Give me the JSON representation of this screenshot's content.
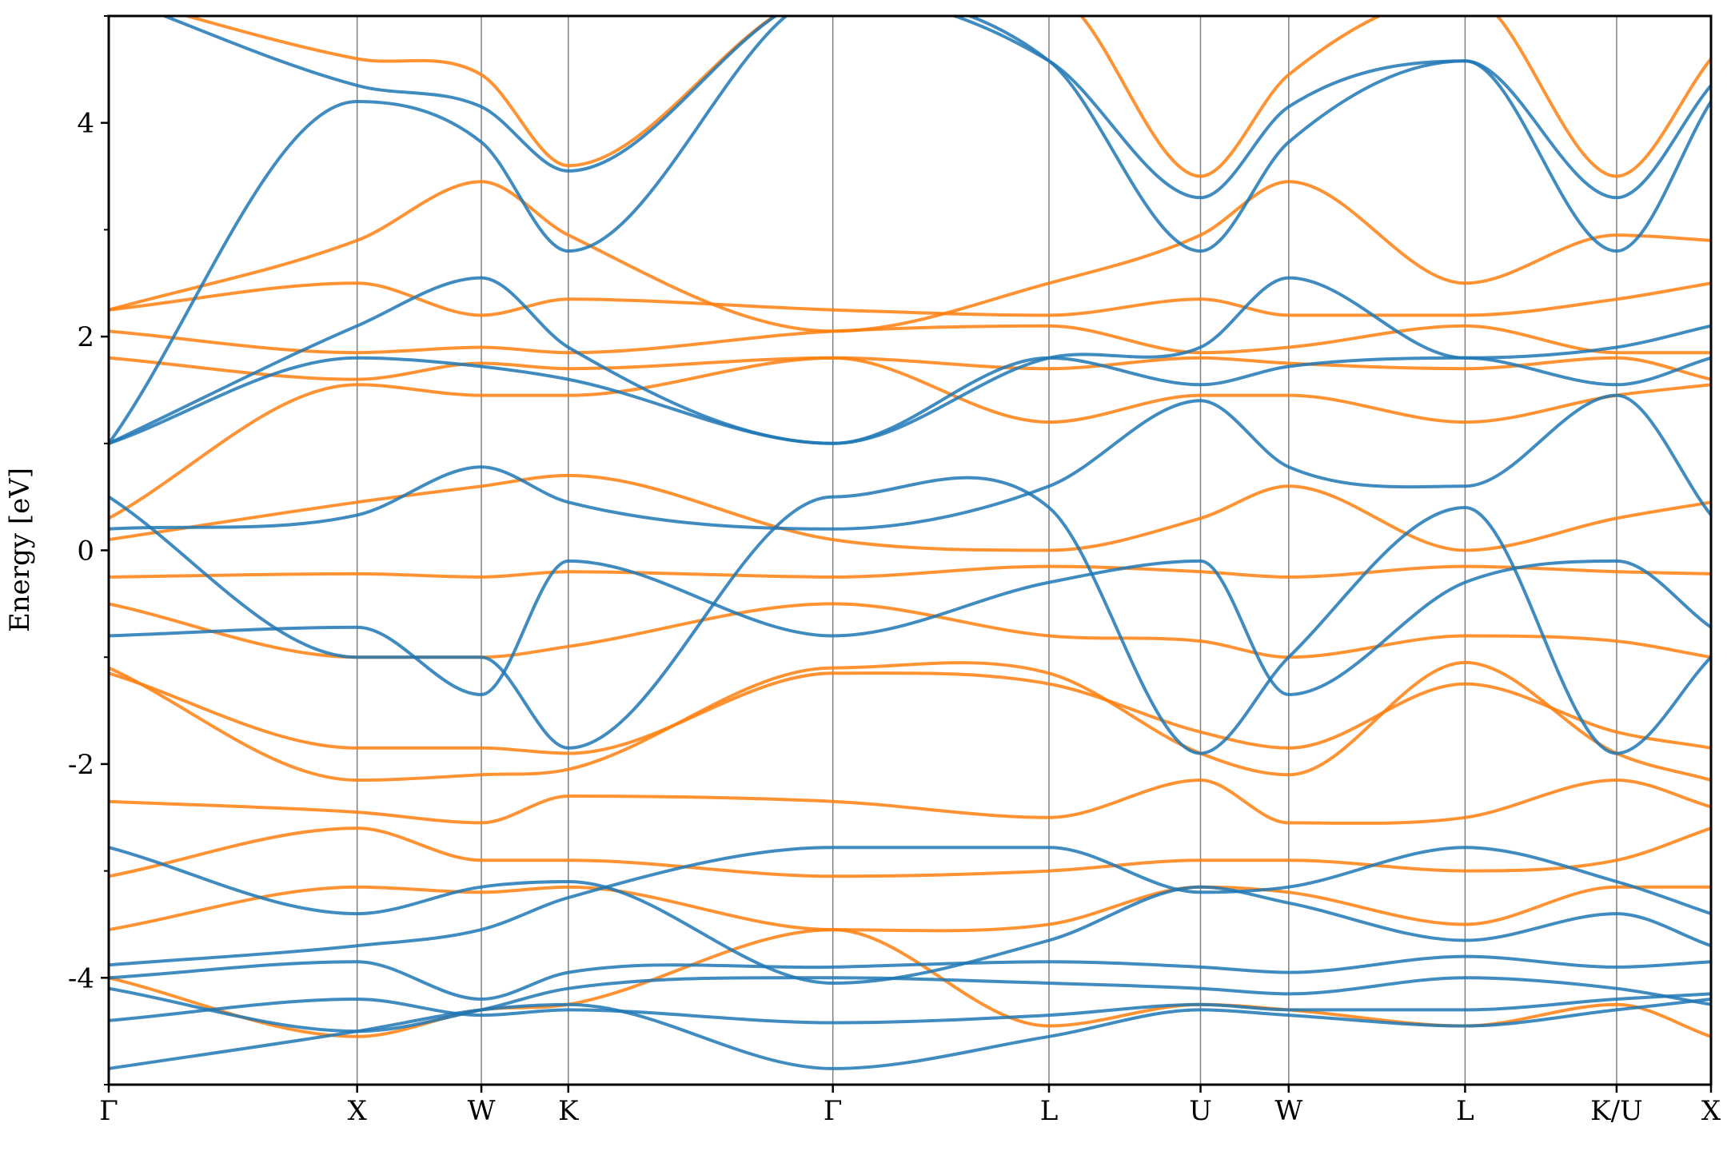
{
  "chart_data": {
    "type": "line",
    "title": "",
    "xlabel": "",
    "ylabel": "Energy [eV]",
    "ylim": [
      -5,
      5
    ],
    "yticks": [
      -4,
      -2,
      0,
      2,
      4
    ],
    "yticks_minor": [
      -5,
      -3,
      -1,
      1,
      3,
      5
    ],
    "xlim": [
      0,
      12.9
    ],
    "kpath_ticks": [
      {
        "label": "Γ",
        "x": 0.0
      },
      {
        "label": "X",
        "x": 2.0
      },
      {
        "label": "W",
        "x": 3.0
      },
      {
        "label": "K",
        "x": 3.7
      },
      {
        "label": "Γ",
        "x": 5.83
      },
      {
        "label": "L",
        "x": 7.57
      },
      {
        "label": "U",
        "x": 8.79
      },
      {
        "label": "W",
        "x": 9.5
      },
      {
        "label": "L",
        "x": 10.92
      },
      {
        "label": "K/U",
        "x": 12.14
      },
      {
        "label": "X",
        "x": 12.9
      }
    ],
    "grid": "vertical lines at high-symmetry points",
    "legend": "none",
    "colors": {
      "spin_up": "#1f77b4",
      "spin_down": "#ff7f0e",
      "kline": "#808080"
    },
    "series": [
      {
        "spin": "up",
        "x": [
          0,
          2,
          3,
          3.7,
          5.83,
          7.57,
          8.79,
          9.5,
          10.92,
          12.14,
          12.9
        ],
        "y": [
          -4.85,
          -4.5,
          -4.3,
          -4.25,
          -4.85,
          -4.55,
          -4.3,
          -4.35,
          -4.45,
          -4.3,
          -4.2
        ]
      },
      {
        "spin": "up",
        "x": [
          0,
          2,
          3,
          3.7,
          5.83,
          7.57,
          8.79,
          9.5,
          10.92,
          12.14,
          12.9
        ],
        "y": [
          -4.4,
          -4.2,
          -4.35,
          -4.3,
          -4.42,
          -4.35,
          -4.25,
          -4.3,
          -4.3,
          -4.2,
          -4.15
        ]
      },
      {
        "spin": "up",
        "x": [
          0,
          2,
          3,
          3.7,
          5.83,
          7.57,
          8.79,
          9.5,
          10.92,
          12.14,
          12.9
        ],
        "y": [
          -4.1,
          -4.5,
          -4.3,
          -4.1,
          -4.0,
          -4.05,
          -4.1,
          -4.15,
          -4.0,
          -4.1,
          -4.25
        ]
      },
      {
        "spin": "up",
        "x": [
          0,
          2,
          3,
          3.7,
          5.83,
          7.57,
          8.79,
          9.5,
          10.92,
          12.14,
          12.9
        ],
        "y": [
          -4.0,
          -3.85,
          -4.2,
          -3.95,
          -3.9,
          -3.85,
          -3.9,
          -3.95,
          -3.8,
          -3.9,
          -3.85
        ]
      },
      {
        "spin": "up",
        "x": [
          0,
          2,
          3,
          3.7,
          5.83,
          7.57,
          8.79,
          9.5,
          10.92,
          12.14,
          12.9
        ],
        "y": [
          -3.88,
          -3.7,
          -3.55,
          -3.25,
          -2.78,
          -2.78,
          -3.2,
          -3.15,
          -2.78,
          -3.1,
          -3.4
        ]
      },
      {
        "spin": "up",
        "x": [
          0,
          2,
          3,
          3.7,
          5.83,
          7.57,
          8.79,
          9.5,
          10.92,
          12.14,
          12.9
        ],
        "y": [
          -2.78,
          -3.4,
          -3.15,
          -3.1,
          -4.05,
          -3.65,
          -3.15,
          -3.3,
          -3.65,
          -3.4,
          -3.7
        ]
      },
      {
        "spin": "up",
        "x": [
          0,
          2,
          3,
          3.7,
          5.83,
          7.57,
          8.79,
          9.5,
          10.92,
          12.14,
          12.9
        ],
        "y": [
          -0.8,
          -0.72,
          -1.35,
          -0.1,
          -0.8,
          -0.3,
          -0.1,
          -1.35,
          -0.3,
          -0.1,
          -0.72
        ]
      },
      {
        "spin": "up",
        "x": [
          0,
          2,
          3,
          3.7,
          5.83,
          7.57,
          8.79,
          9.5,
          10.92,
          12.14,
          12.9
        ],
        "y": [
          0.2,
          0.33,
          0.78,
          0.45,
          0.2,
          0.6,
          1.4,
          0.78,
          0.6,
          1.45,
          0.33
        ]
      },
      {
        "spin": "up",
        "x": [
          0,
          2,
          3,
          3.7,
          5.83,
          7.57,
          8.79,
          9.5,
          10.92,
          12.14,
          12.9
        ],
        "y": [
          0.5,
          -1.0,
          -1.0,
          -1.85,
          0.5,
          0.4,
          -1.9,
          -1.0,
          0.4,
          -1.9,
          -1.0
        ]
      },
      {
        "spin": "up",
        "x": [
          0,
          2,
          3,
          3.7,
          5.83,
          7.57,
          8.79,
          9.5,
          10.92,
          12.14,
          12.9
        ],
        "y": [
          1.0,
          1.8,
          1.72,
          1.6,
          1.0,
          1.8,
          1.55,
          1.72,
          1.8,
          1.55,
          1.8
        ]
      },
      {
        "spin": "up",
        "x": [
          0,
          2,
          3,
          3.7,
          5.83,
          7.57,
          8.79,
          9.5,
          10.92,
          12.14,
          12.9
        ],
        "y": [
          1.0,
          2.1,
          2.55,
          1.9,
          1.0,
          1.8,
          1.9,
          2.55,
          1.8,
          1.9,
          2.1
        ]
      },
      {
        "spin": "up",
        "x": [
          0,
          2,
          3,
          3.7,
          5.83,
          7.57,
          8.79,
          9.5,
          10.92,
          12.14,
          12.9
        ],
        "y": [
          1.0,
          4.2,
          3.82,
          2.8,
          5.2,
          4.58,
          2.8,
          3.82,
          4.58,
          2.8,
          4.2
        ]
      },
      {
        "spin": "up",
        "x": [
          0,
          2,
          3,
          3.7,
          5.83,
          7.57,
          8.79,
          9.5,
          10.92,
          12.14,
          12.9
        ],
        "y": [
          5.2,
          4.35,
          4.15,
          3.55,
          5.2,
          4.58,
          3.3,
          4.15,
          4.58,
          3.3,
          4.35
        ]
      },
      {
        "spin": "down",
        "x": [
          0,
          2,
          3,
          3.7,
          5.83,
          7.57,
          8.79,
          9.5,
          10.92,
          12.14,
          12.9
        ],
        "y": [
          -3.55,
          -3.15,
          -3.2,
          -3.15,
          -3.55,
          -3.5,
          -3.15,
          -3.2,
          -3.5,
          -3.15,
          -3.15
        ]
      },
      {
        "spin": "down",
        "x": [
          0,
          2,
          3,
          3.7,
          5.83,
          7.57,
          8.79,
          9.5,
          10.92,
          12.14,
          12.9
        ],
        "y": [
          -3.05,
          -2.6,
          -2.9,
          -2.9,
          -3.05,
          -3.0,
          -2.9,
          -2.9,
          -3.0,
          -2.9,
          -2.6
        ]
      },
      {
        "spin": "down",
        "x": [
          0,
          2,
          3,
          3.7,
          5.83,
          7.57,
          8.79,
          9.5,
          10.92,
          12.14,
          12.9
        ],
        "y": [
          -2.35,
          -2.45,
          -2.55,
          -2.3,
          -2.35,
          -2.5,
          -2.15,
          -2.55,
          -2.5,
          -2.15,
          -2.4
        ]
      },
      {
        "spin": "down",
        "x": [
          0,
          2,
          3,
          3.7,
          5.83,
          7.57,
          8.79,
          9.5,
          10.92,
          12.14,
          12.9
        ],
        "y": [
          -1.15,
          -1.85,
          -1.85,
          -1.9,
          -1.15,
          -1.25,
          -1.7,
          -1.85,
          -1.25,
          -1.7,
          -1.85
        ]
      },
      {
        "spin": "down",
        "x": [
          0,
          2,
          3,
          3.7,
          5.83,
          7.57,
          8.79,
          9.5,
          10.92,
          12.14,
          12.9
        ],
        "y": [
          -1.1,
          -2.15,
          -2.1,
          -2.05,
          -1.1,
          -1.15,
          -1.9,
          -2.1,
          -1.05,
          -1.9,
          -2.15
        ]
      },
      {
        "spin": "down",
        "x": [
          0,
          2,
          3,
          3.7,
          5.83,
          7.57,
          8.79,
          9.5,
          10.92,
          12.14,
          12.9
        ],
        "y": [
          -0.5,
          -1.0,
          -1.0,
          -0.9,
          -0.5,
          -0.8,
          -0.85,
          -1.0,
          -0.8,
          -0.85,
          -1.0
        ]
      },
      {
        "spin": "down",
        "x": [
          0,
          2,
          3,
          3.7,
          5.83,
          7.57,
          8.79,
          9.5,
          10.92,
          12.14,
          12.9
        ],
        "y": [
          -0.25,
          -0.22,
          -0.25,
          -0.2,
          -0.25,
          -0.15,
          -0.2,
          -0.25,
          -0.15,
          -0.2,
          -0.22
        ]
      },
      {
        "spin": "down",
        "x": [
          0,
          2,
          3,
          3.7,
          5.83,
          7.57,
          8.79,
          9.5,
          10.92,
          12.14,
          12.9
        ],
        "y": [
          0.1,
          0.45,
          0.6,
          0.7,
          0.1,
          0.0,
          0.3,
          0.6,
          0.0,
          0.3,
          0.45
        ]
      },
      {
        "spin": "down",
        "x": [
          0,
          2,
          3,
          3.7,
          5.83,
          7.57,
          8.79,
          9.5,
          10.92,
          12.14,
          12.9
        ],
        "y": [
          0.3,
          1.55,
          1.45,
          1.45,
          1.8,
          1.2,
          1.45,
          1.45,
          1.2,
          1.45,
          1.55
        ]
      },
      {
        "spin": "down",
        "x": [
          0,
          2,
          3,
          3.7,
          5.83,
          7.57,
          8.79,
          9.5,
          10.92,
          12.14,
          12.9
        ],
        "y": [
          1.8,
          1.6,
          1.75,
          1.7,
          1.8,
          1.7,
          1.8,
          1.75,
          1.7,
          1.8,
          1.6
        ]
      },
      {
        "spin": "down",
        "x": [
          0,
          2,
          3,
          3.7,
          5.83,
          7.57,
          8.79,
          9.5,
          10.92,
          12.14,
          12.9
        ],
        "y": [
          2.05,
          1.85,
          1.9,
          1.85,
          2.05,
          2.1,
          1.85,
          1.9,
          2.1,
          1.85,
          1.85
        ]
      },
      {
        "spin": "down",
        "x": [
          0,
          2,
          3,
          3.7,
          5.83,
          7.57,
          8.79,
          9.5,
          10.92,
          12.14,
          12.9
        ],
        "y": [
          2.25,
          2.5,
          2.2,
          2.35,
          2.25,
          2.2,
          2.35,
          2.2,
          2.2,
          2.35,
          2.5
        ]
      },
      {
        "spin": "down",
        "x": [
          0,
          2,
          3,
          3.7,
          5.83,
          7.57,
          8.79,
          9.5,
          10.92,
          12.14,
          12.9
        ],
        "y": [
          2.25,
          2.9,
          3.45,
          2.95,
          2.05,
          2.5,
          2.95,
          3.45,
          2.5,
          2.95,
          2.9
        ]
      },
      {
        "spin": "down",
        "x": [
          0,
          2,
          3,
          3.7,
          5.83,
          7.57,
          8.79,
          9.5,
          10.92,
          12.14,
          12.9
        ],
        "y": [
          5.2,
          4.6,
          4.45,
          3.6,
          5.2,
          5.2,
          3.5,
          4.45,
          5.2,
          3.5,
          4.6
        ]
      },
      {
        "spin": "down",
        "x": [
          0,
          2,
          3,
          3.7,
          5.83,
          7.57,
          8.79,
          9.5,
          10.92,
          12.14,
          12.9
        ],
        "y": [
          -4.0,
          -4.55,
          -4.3,
          -4.25,
          -3.55,
          -4.45,
          -4.25,
          -4.3,
          -4.45,
          -4.25,
          -4.55
        ]
      }
    ]
  }
}
